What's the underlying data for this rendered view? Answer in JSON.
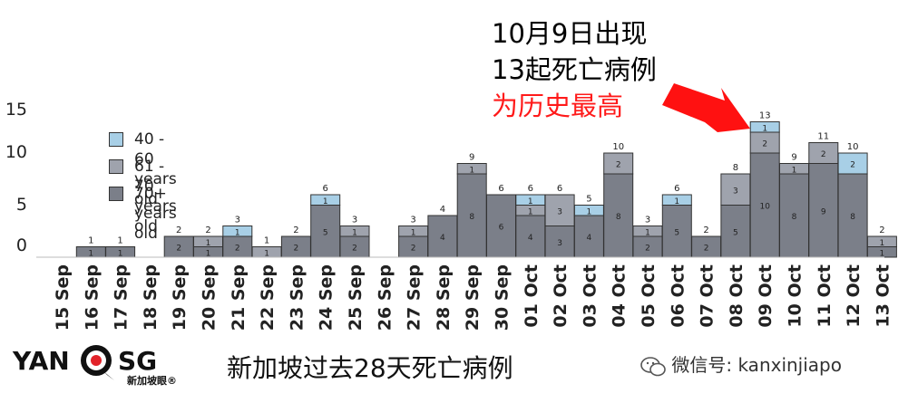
{
  "annotation": {
    "line1": "10月9日出现",
    "line2": "13起死亡病例",
    "line3": "为历史最高",
    "line3_color": "#ff1a1a",
    "arrow_color": "#ff1111"
  },
  "footer": {
    "caption": "新加坡过去28天死亡病例",
    "logo_left": "YAN",
    "logo_right": "SG",
    "logo_sub": "新加坡眼®",
    "wechat": "微信号: kanxinjiapo"
  },
  "colors": {
    "c40_60": "#a8cfe6",
    "c61_70": "#9fa3ad",
    "c70p": "#7b7f89"
  },
  "chart_data": {
    "type": "bar",
    "stacked": true,
    "categories": [
      "15 Sep",
      "16 Sep",
      "17 Sep",
      "18 Sep",
      "19 Sep",
      "20 Sep",
      "21 Sep",
      "22 Sep",
      "23 Sep",
      "24 Sep",
      "25 Sep",
      "26 Sep",
      "27 Sep",
      "28 Sep",
      "29 Sep",
      "30 Sep",
      "01 Oct",
      "02 Oct",
      "03 Oct",
      "04 Oct",
      "05 Oct",
      "06 Oct",
      "07 Oct",
      "08 Oct",
      "09 Oct",
      "10 Oct",
      "11 Oct",
      "12 Oct",
      "13 Oct"
    ],
    "series": [
      {
        "name": "70+ years old",
        "values": [
          0,
          1,
          1,
          0,
          2,
          1,
          2,
          0,
          2,
          5,
          2,
          0,
          2,
          4,
          8,
          6,
          4,
          3,
          4,
          8,
          2,
          5,
          2,
          5,
          10,
          8,
          9,
          8,
          1
        ]
      },
      {
        "name": "61 - 70 years old",
        "values": [
          0,
          0,
          0,
          0,
          0,
          1,
          0,
          1,
          0,
          0,
          1,
          0,
          1,
          0,
          1,
          0,
          1,
          3,
          0,
          2,
          1,
          0,
          0,
          3,
          2,
          1,
          2,
          0,
          1
        ]
      },
      {
        "name": "40 - 60 years old",
        "values": [
          0,
          0,
          0,
          0,
          0,
          0,
          1,
          0,
          0,
          1,
          0,
          0,
          0,
          0,
          0,
          0,
          1,
          0,
          1,
          0,
          0,
          1,
          0,
          0,
          1,
          0,
          0,
          2,
          0
        ]
      }
    ],
    "totals": [
      0,
      1,
      1,
      0,
      2,
      2,
      3,
      1,
      2,
      6,
      3,
      0,
      3,
      4,
      9,
      6,
      6,
      6,
      5,
      10,
      3,
      6,
      2,
      8,
      13,
      9,
      11,
      10,
      2
    ],
    "yticks": [
      0,
      5,
      10,
      15
    ],
    "ylim": [
      0,
      15
    ],
    "legend_position": "upper-left",
    "grid": false
  }
}
